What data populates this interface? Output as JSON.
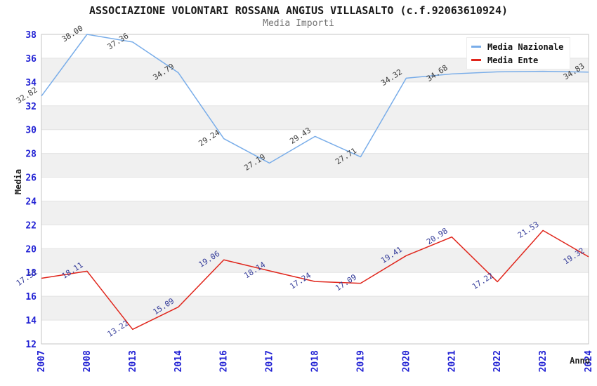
{
  "chart": {
    "title": "ASSOCIAZIONE VOLONTARI ROSSANA ANGIUS VILLASALTO (c.f.92063610924)",
    "subtitle": "Media Importi",
    "y_axis_title": "Media",
    "x_axis_title": "Anno"
  },
  "colors": {
    "tick_label": "#2222d4",
    "band_gray": "#f0f0f0",
    "band_white": "#ffffff",
    "gridline": "#e3e3e3",
    "plot_border": "#c6c6c6",
    "national_line": "#79ade9",
    "ente_line": "#e0251b",
    "national_label": "#3a3a3a",
    "ente_label": "#333b99"
  },
  "chart_data": {
    "type": "line",
    "title": "ASSOCIAZIONE VOLONTARI ROSSANA ANGIUS VILLASALTO (c.f.92063610924)",
    "subtitle": "Media Importi",
    "xlabel": "Anno",
    "ylabel": "Media",
    "categories": [
      "2007",
      "2008",
      "2013",
      "2014",
      "2016",
      "2017",
      "2018",
      "2019",
      "2020",
      "2021",
      "2022",
      "2023",
      "2024"
    ],
    "ylim": [
      12,
      38
    ],
    "yticks": [
      12,
      14,
      16,
      18,
      20,
      22,
      24,
      26,
      28,
      30,
      32,
      34,
      36,
      38
    ],
    "grid": "alternating horizontal gray/white bands, light gridline every 2 units",
    "legend_position": "top-right",
    "series": [
      {
        "name": "Media Nazionale",
        "color": "#79ade9",
        "label_color": "#3a3a3a",
        "values": [
          32.82,
          38.0,
          37.36,
          34.79,
          29.24,
          27.19,
          29.43,
          27.71,
          34.32,
          34.68,
          34.85,
          34.9,
          34.83
        ],
        "labels": [
          "32.82",
          "38.00",
          "37.36",
          "34.79",
          "29.24",
          "27.19",
          "29.43",
          "27.71",
          "34.32",
          "34.68",
          "",
          "",
          "34.83"
        ]
      },
      {
        "name": "Media Ente",
        "color": "#e0251b",
        "label_color": "#333b99",
        "values": [
          17.51,
          18.11,
          13.22,
          15.09,
          19.06,
          18.14,
          17.24,
          17.09,
          19.41,
          20.98,
          17.22,
          21.53,
          19.32
        ],
        "labels": [
          "17.51",
          "18.11",
          "13.22",
          "15.09",
          "19.06",
          "18.14",
          "17.24",
          "17.09",
          "19.41",
          "20.98",
          "17.22",
          "21.53",
          "19.32"
        ]
      }
    ]
  }
}
